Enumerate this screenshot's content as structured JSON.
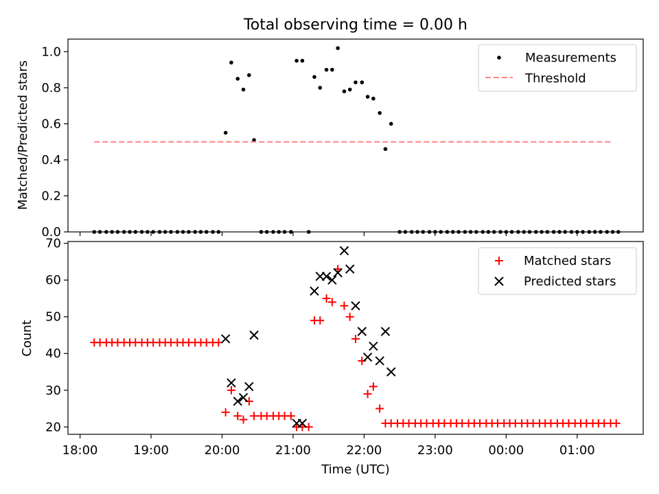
{
  "chart_data": {
    "title": "Total observing time = 0.00 h",
    "xlabel": "Time (UTC)",
    "x_ticks": [
      "18:00",
      "19:00",
      "20:00",
      "21:00",
      "22:00",
      "23:00",
      "00:00",
      "01:00"
    ],
    "x_tick_hours": [
      18,
      19,
      20,
      21,
      22,
      23,
      24,
      25
    ],
    "xlim": [
      17.83,
      25.93
    ],
    "colors": {
      "measurements": "#000000",
      "threshold": "#ff8080",
      "matched": "#ff0000",
      "predicted": "#000000"
    },
    "panels": [
      {
        "type": "scatter",
        "ylabel": "Matched/Predicted stars",
        "ylim": [
          0,
          1.07
        ],
        "y_ticks": [
          "0.0",
          "0.2",
          "0.4",
          "0.6",
          "0.8",
          "1.0"
        ],
        "y_tick_values": [
          0,
          0.2,
          0.4,
          0.6,
          0.8,
          1.0
        ],
        "legend_position": "upper right",
        "series": [
          {
            "name": "Measurements",
            "marker": "dot",
            "x": [
              18.2,
              18.28,
              18.37,
              18.45,
              18.53,
              18.62,
              18.7,
              18.78,
              18.87,
              18.95,
              19.03,
              19.12,
              19.2,
              19.28,
              19.37,
              19.45,
              19.53,
              19.62,
              19.7,
              19.78,
              19.87,
              19.95,
              20.05,
              20.13,
              20.22,
              20.3,
              20.38,
              20.45,
              20.55,
              20.63,
              20.72,
              20.8,
              20.88,
              20.97,
              21.05,
              21.13,
              21.22,
              21.3,
              21.38,
              21.47,
              21.55,
              21.63,
              21.72,
              21.8,
              21.88,
              21.97,
              22.05,
              22.13,
              22.22,
              22.3,
              22.38,
              22.5,
              22.58,
              22.67,
              22.75,
              22.83,
              22.92,
              23.0,
              23.08,
              23.17,
              23.25,
              23.33,
              23.42,
              23.5,
              23.58,
              23.67,
              23.75,
              23.83,
              23.92,
              24.0,
              24.08,
              24.17,
              24.25,
              24.33,
              24.42,
              24.5,
              24.58,
              24.67,
              24.75,
              24.83,
              24.92,
              25.0,
              25.08,
              25.17,
              25.25,
              25.33,
              25.42,
              25.5,
              25.58
            ],
            "y": [
              0,
              0,
              0,
              0,
              0,
              0,
              0,
              0,
              0,
              0,
              0,
              0,
              0,
              0,
              0,
              0,
              0,
              0,
              0,
              0,
              0,
              0,
              0.55,
              0.94,
              0.85,
              0.79,
              0.87,
              0.51,
              0,
              0,
              0,
              0,
              0,
              0,
              0.95,
              0.95,
              0,
              0.86,
              0.8,
              0.9,
              0.9,
              1.02,
              0.78,
              0.79,
              0.83,
              0.83,
              0.75,
              0.74,
              0.66,
              0.46,
              0.6,
              0,
              0,
              0,
              0,
              0,
              0,
              0,
              0,
              0,
              0,
              0,
              0,
              0,
              0,
              0,
              0,
              0,
              0,
              0,
              0,
              0,
              0,
              0,
              0,
              0,
              0,
              0,
              0,
              0,
              0,
              0,
              0,
              0,
              0,
              0,
              0,
              0,
              0
            ]
          },
          {
            "name": "Threshold",
            "type": "line",
            "style": "dashed",
            "x": [
              18.2,
              25.5
            ],
            "y": [
              0.5,
              0.5
            ]
          }
        ]
      },
      {
        "type": "scatter",
        "ylabel": "Count",
        "ylim": [
          18,
          70.5
        ],
        "y_ticks": [
          "20",
          "30",
          "40",
          "50",
          "60",
          "70"
        ],
        "y_tick_values": [
          20,
          30,
          40,
          50,
          60,
          70
        ],
        "legend_position": "upper right",
        "series": [
          {
            "name": "Matched stars",
            "marker": "plus",
            "x": [
              18.2,
              18.28,
              18.37,
              18.45,
              18.53,
              18.62,
              18.7,
              18.78,
              18.87,
              18.95,
              19.03,
              19.12,
              19.2,
              19.28,
              19.37,
              19.45,
              19.53,
              19.62,
              19.7,
              19.78,
              19.87,
              19.95,
              20.05,
              20.13,
              20.22,
              20.3,
              20.38,
              20.45,
              20.55,
              20.63,
              20.72,
              20.8,
              20.88,
              20.97,
              21.05,
              21.13,
              21.22,
              21.3,
              21.38,
              21.47,
              21.55,
              21.63,
              21.72,
              21.8,
              21.88,
              21.97,
              22.05,
              22.13,
              22.22,
              22.3,
              22.38,
              22.47,
              22.55,
              22.63,
              22.72,
              22.8,
              22.88,
              22.97,
              23.05,
              23.13,
              23.22,
              23.3,
              23.38,
              23.47,
              23.55,
              23.63,
              23.72,
              23.8,
              23.88,
              23.97,
              24.05,
              24.13,
              24.22,
              24.3,
              24.38,
              24.47,
              24.55,
              24.63,
              24.72,
              24.8,
              24.88,
              24.97,
              25.05,
              25.13,
              25.22,
              25.3,
              25.38,
              25.47,
              25.55
            ],
            "y": [
              43,
              43,
              43,
              43,
              43,
              43,
              43,
              43,
              43,
              43,
              43,
              43,
              43,
              43,
              43,
              43,
              43,
              43,
              43,
              43,
              43,
              43,
              24,
              30,
              23,
              22,
              27,
              23,
              23,
              23,
              23,
              23,
              23,
              23,
              20,
              20,
              20,
              49,
              49,
              55,
              54,
              63,
              53,
              50,
              44,
              38,
              29,
              31,
              25,
              21,
              21,
              21,
              21,
              21,
              21,
              21,
              21,
              21,
              21,
              21,
              21,
              21,
              21,
              21,
              21,
              21,
              21,
              21,
              21,
              21,
              21,
              21,
              21,
              21,
              21,
              21,
              21,
              21,
              21,
              21,
              21,
              21,
              21,
              21,
              21,
              21,
              21,
              21,
              21
            ]
          },
          {
            "name": "Predicted stars",
            "marker": "x",
            "x": [
              20.05,
              20.13,
              20.22,
              20.3,
              20.38,
              20.45,
              21.05,
              21.13,
              21.3,
              21.38,
              21.47,
              21.55,
              21.63,
              21.72,
              21.8,
              21.88,
              21.97,
              22.05,
              22.13,
              22.22,
              22.3,
              22.38
            ],
            "y": [
              44,
              32,
              27,
              28,
              31,
              45,
              21,
              21,
              57,
              61,
              61,
              60,
              62,
              68,
              63,
              53,
              46,
              39,
              42,
              38,
              46,
              35
            ]
          }
        ]
      }
    ]
  }
}
